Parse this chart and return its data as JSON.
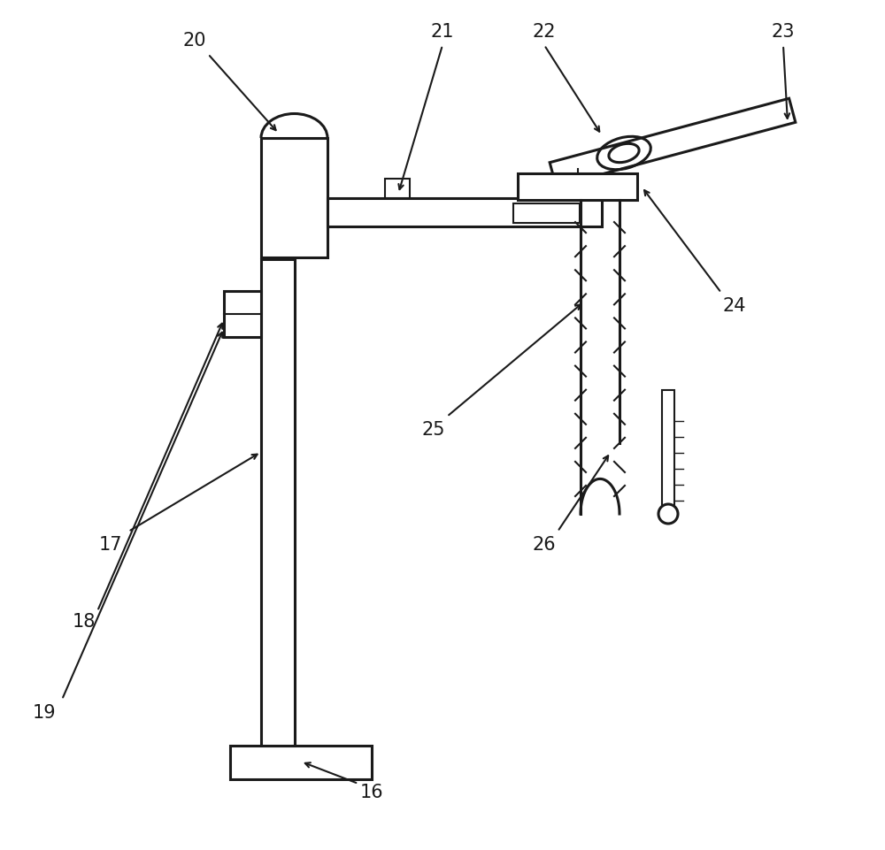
{
  "line_color": "#1a1a1a",
  "lw": 2.2,
  "thin_lw": 1.5,
  "font_size": 15
}
